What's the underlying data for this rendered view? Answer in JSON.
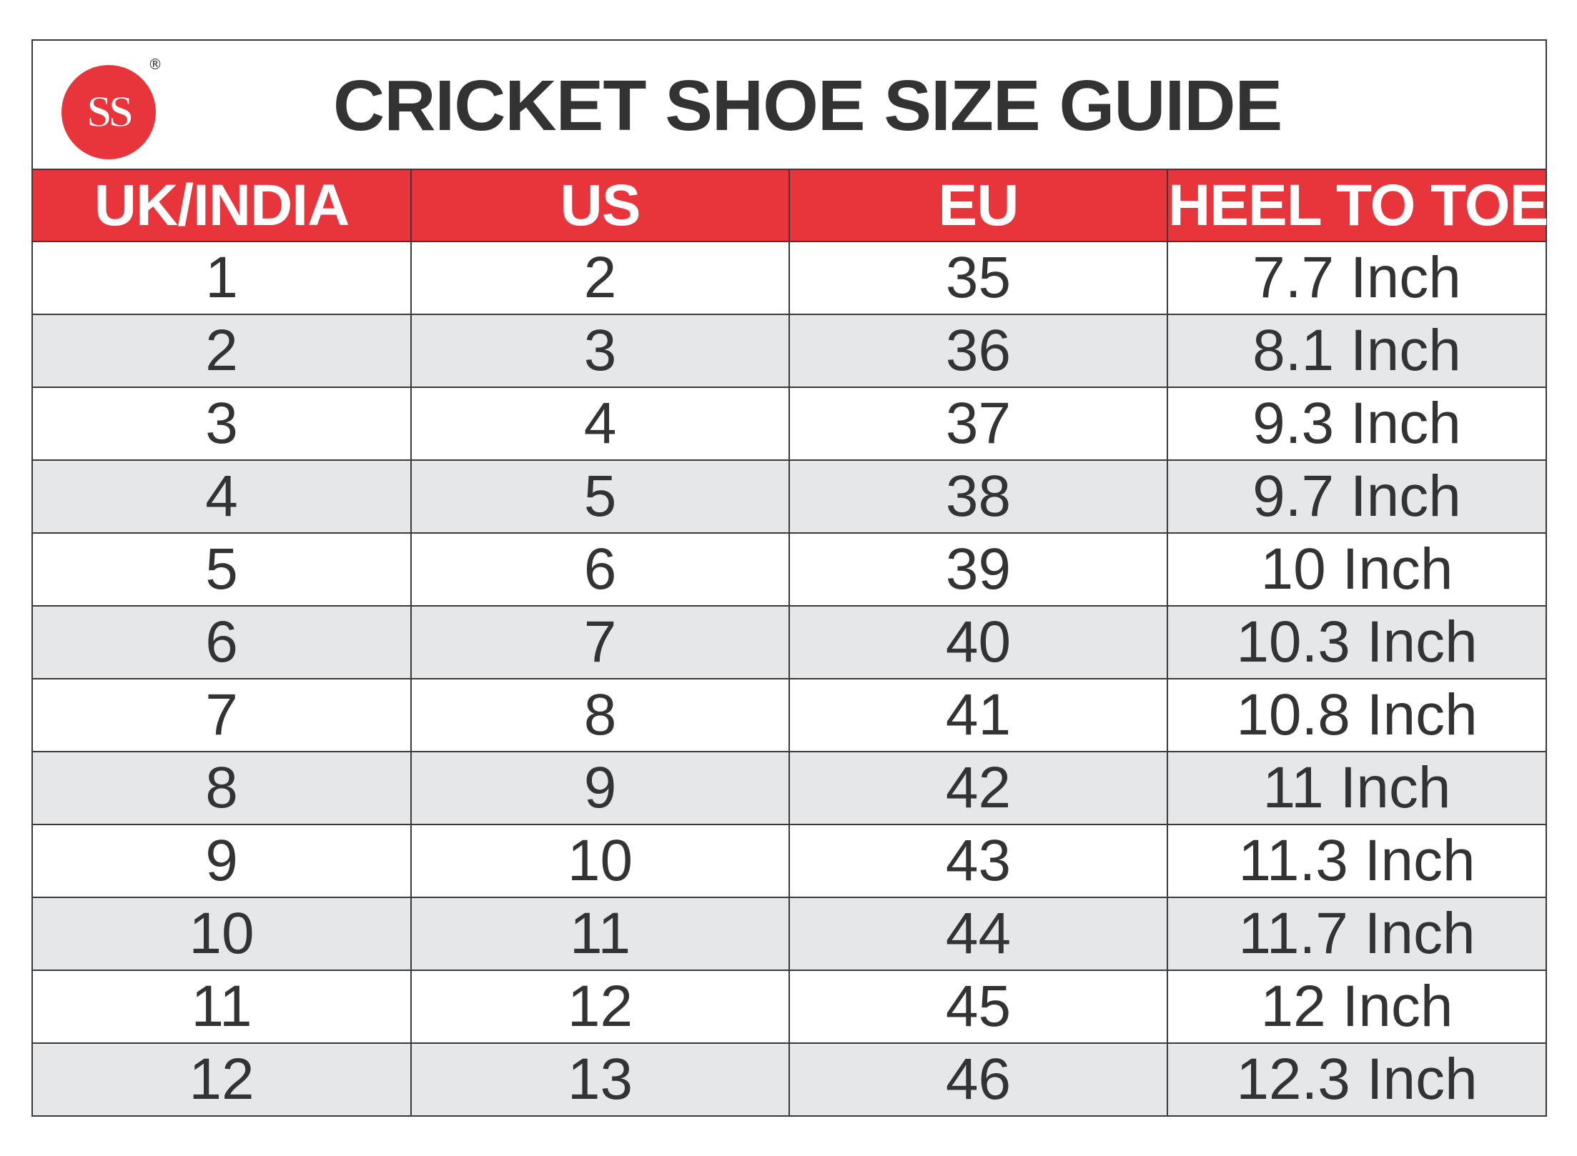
{
  "header": {
    "brand": "SS",
    "registered_mark": "®",
    "title": "CRICKET SHOE SIZE GUIDE"
  },
  "colors": {
    "accent": "#e8343b",
    "text": "#333333",
    "row_alt": "#e6e7e9",
    "border": "#3a3a3a"
  },
  "table": {
    "columns": [
      "UK/INDIA",
      "US",
      "EU",
      "HEEL TO TOE"
    ],
    "rows": [
      [
        "1",
        "2",
        "35",
        "7.7 Inch"
      ],
      [
        "2",
        "3",
        "36",
        "8.1 Inch"
      ],
      [
        "3",
        "4",
        "37",
        "9.3 Inch"
      ],
      [
        "4",
        "5",
        "38",
        "9.7 Inch"
      ],
      [
        "5",
        "6",
        "39",
        "10 Inch"
      ],
      [
        "6",
        "7",
        "40",
        "10.3 Inch"
      ],
      [
        "7",
        "8",
        "41",
        "10.8 Inch"
      ],
      [
        "8",
        "9",
        "42",
        "11 Inch"
      ],
      [
        "9",
        "10",
        "43",
        "11.3 Inch"
      ],
      [
        "10",
        "11",
        "44",
        "11.7 Inch"
      ],
      [
        "11",
        "12",
        "45",
        "12 Inch"
      ],
      [
        "12",
        "13",
        "46",
        "12.3 Inch"
      ]
    ]
  }
}
